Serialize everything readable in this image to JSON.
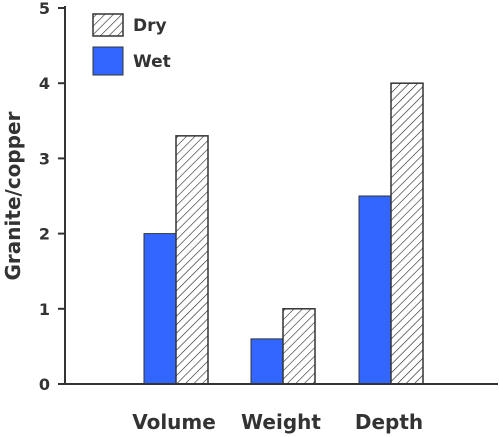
{
  "chart_data": {
    "type": "bar",
    "categories": [
      "Volume",
      "Weight",
      "Depth"
    ],
    "series": [
      {
        "name": "Wet",
        "values": [
          2.0,
          0.6,
          2.5
        ],
        "color": "#3366ff",
        "pattern": "solid"
      },
      {
        "name": "Dry",
        "values": [
          3.3,
          1.0,
          4.0
        ],
        "color": "#ffffff",
        "pattern": "hatched"
      }
    ],
    "title": "",
    "xlabel": "",
    "ylabel": "Granite/copper",
    "ylim": [
      0,
      5
    ],
    "yticks": [
      "0",
      "1",
      "2",
      "3",
      "4",
      "5"
    ],
    "grid": false,
    "legend_position": "top-left"
  }
}
